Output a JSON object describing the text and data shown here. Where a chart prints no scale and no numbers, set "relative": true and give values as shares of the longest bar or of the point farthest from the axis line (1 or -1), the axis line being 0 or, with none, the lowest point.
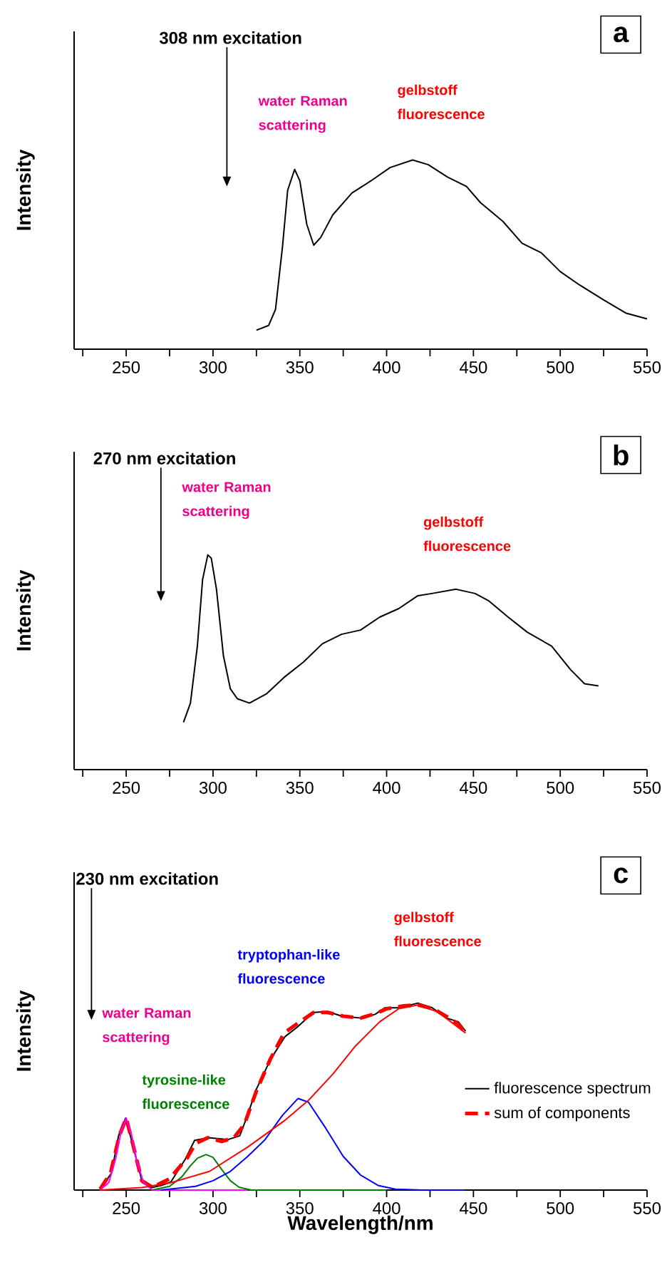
{
  "chart_data": [
    {
      "type": "line",
      "title": "a",
      "ylabel": "Intensity",
      "relative": true,
      "xlim": [
        220,
        550
      ],
      "xticks": [
        {
          "value": 225,
          "label": null
        },
        250,
        {
          "value": 275,
          "label": null
        },
        300,
        {
          "value": 325,
          "label": null
        },
        350,
        {
          "value": 375,
          "label": null
        },
        400,
        {
          "value": 425,
          "label": null
        },
        450,
        {
          "value": 475,
          "label": null
        },
        500,
        {
          "value": 525,
          "label": null
        },
        550
      ],
      "series": [
        {
          "color": "#000000",
          "x": [
            325,
            332,
            336,
            340,
            343,
            347,
            350,
            354,
            358,
            362,
            369,
            380,
            391,
            402,
            415,
            424,
            435,
            446,
            454,
            467,
            478,
            489,
            500,
            511,
            525,
            538,
            550
          ],
          "values": [
            0.1,
            0.125,
            0.21,
            0.54,
            0.84,
            0.95,
            0.89,
            0.66,
            0.55,
            0.59,
            0.71,
            0.825,
            0.89,
            0.96,
            1.0,
            0.975,
            0.91,
            0.86,
            0.775,
            0.675,
            0.56,
            0.51,
            0.41,
            0.34,
            0.26,
            0.19,
            0.16
          ]
        }
      ],
      "ref_lines": [
        {
          "axis": "x",
          "value": 308,
          "label": "308 nm excitation",
          "color": "#000000"
        }
      ],
      "annotations": [
        "water Raman scattering",
        "gelbstoff fluorescence"
      ]
    },
    {
      "type": "line",
      "title": "b",
      "ylabel": "Intensity",
      "relative": true,
      "xlim": [
        220,
        550
      ],
      "xticks": [
        {
          "value": 225,
          "label": null
        },
        250,
        {
          "value": 275,
          "label": null
        },
        300,
        {
          "value": 325,
          "label": null
        },
        350,
        {
          "value": 375,
          "label": null
        },
        400,
        {
          "value": 425,
          "label": null
        },
        450,
        {
          "value": 475,
          "label": null
        },
        500,
        {
          "value": 525,
          "label": null
        },
        550
      ],
      "series": [
        {
          "color": "#000000",
          "x": [
            283,
            287,
            291,
            294,
            297,
            299,
            302,
            306,
            310,
            314,
            321,
            331,
            341,
            352,
            363,
            374,
            385,
            396,
            407,
            418,
            426,
            440,
            451,
            459,
            470,
            481,
            495,
            506,
            514,
            522
          ],
          "values": [
            0.22,
            0.31,
            0.575,
            0.885,
            1.0,
            0.985,
            0.84,
            0.53,
            0.376,
            0.33,
            0.31,
            0.354,
            0.43,
            0.5,
            0.586,
            0.63,
            0.65,
            0.71,
            0.75,
            0.81,
            0.82,
            0.84,
            0.82,
            0.785,
            0.71,
            0.64,
            0.575,
            0.465,
            0.4,
            0.39
          ]
        }
      ],
      "ref_lines": [
        {
          "axis": "x",
          "value": 270,
          "label": "270 nm excitation",
          "color": "#000000"
        }
      ],
      "annotations": [
        "water Raman scattering",
        "gelbstoff fluorescence"
      ]
    },
    {
      "type": "line",
      "title": "c",
      "xlabel": "Wavelength/nm",
      "ylabel": "Intensity",
      "relative": true,
      "xlim": [
        220,
        550
      ],
      "legend": "right",
      "xticks": [
        {
          "value": 225,
          "label": null
        },
        250,
        {
          "value": 275,
          "label": null
        },
        300,
        {
          "value": 325,
          "label": null
        },
        350,
        {
          "value": 375,
          "label": null
        },
        400,
        {
          "value": 425,
          "label": null
        },
        450,
        {
          "value": 475,
          "label": null
        },
        500,
        {
          "value": 525,
          "label": null
        },
        550
      ],
      "series": [
        {
          "name": "fluorescence spectrum",
          "color": "#000000",
          "line_style": "solid",
          "x": [
            235,
            241.5,
            245.6,
            249.7,
            253.8,
            259.3,
            264.8,
            270.3,
            275.7,
            284,
            289.4,
            297.6,
            308.6,
            315.4,
            319.5,
            325,
            333.2,
            341.4,
            348.3,
            357.9,
            366,
            374.3,
            385.2,
            393.4,
            398.9,
            407.1,
            418,
            426.3,
            434.5,
            441.3,
            445.5
          ],
          "values": [
            0.005,
            0.09,
            0.29,
            0.385,
            0.24,
            0.04,
            0.013,
            0.025,
            0.043,
            0.165,
            0.266,
            0.28,
            0.27,
            0.29,
            0.39,
            0.54,
            0.7,
            0.82,
            0.87,
            0.95,
            0.955,
            0.93,
            0.92,
            0.94,
            0.975,
            0.975,
            1.0,
            0.975,
            0.92,
            0.9,
            0.85
          ]
        },
        {
          "name": "sum of components",
          "color": "#ff0000",
          "line_style": "dashed",
          "x": [
            235,
            241,
            246,
            250,
            254,
            259,
            265,
            275,
            285,
            290,
            297,
            305,
            312,
            318,
            325,
            333,
            341,
            350,
            358,
            366,
            375,
            385,
            394,
            400,
            410,
            418,
            427,
            435,
            441,
            445.5
          ],
          "values": [
            0.005,
            0.09,
            0.29,
            0.385,
            0.24,
            0.05,
            0.015,
            0.06,
            0.17,
            0.25,
            0.28,
            0.26,
            0.28,
            0.35,
            0.53,
            0.7,
            0.84,
            0.9,
            0.95,
            0.95,
            0.93,
            0.92,
            0.945,
            0.97,
            0.985,
            0.99,
            0.97,
            0.925,
            0.89,
            0.84
          ]
        },
        {
          "color": "#ff00ff",
          "line_style": "solid",
          "x": [
            235,
            240,
            244,
            247,
            250,
            253,
            256,
            260,
            265,
            320
          ],
          "values": [
            0,
            0.04,
            0.17,
            0.31,
            0.385,
            0.3,
            0.16,
            0.04,
            0,
            0
          ]
        },
        {
          "color": "#008000",
          "line_style": "solid",
          "x": [
            265,
            275,
            282,
            287,
            291,
            296,
            300,
            305,
            310,
            315,
            322,
            400
          ],
          "values": [
            0,
            0.02,
            0.07,
            0.13,
            0.17,
            0.19,
            0.175,
            0.11,
            0.05,
            0.015,
            0,
            0
          ]
        },
        {
          "color": "#0000ff",
          "line_style": "solid",
          "x": [
            270,
            290,
            300,
            310,
            320,
            330,
            340,
            349,
            355,
            365,
            375,
            385,
            395,
            405,
            420,
            445
          ],
          "values": [
            0,
            0.02,
            0.05,
            0.1,
            0.18,
            0.27,
            0.4,
            0.49,
            0.47,
            0.33,
            0.18,
            0.08,
            0.025,
            0.005,
            0,
            0
          ]
        },
        {
          "color": "#ff0000",
          "line_style": "solid",
          "x": [
            235,
            259,
            276,
            298,
            320,
            341,
            355,
            369,
            382,
            396,
            407,
            418,
            429,
            437,
            445.5
          ],
          "values": [
            0,
            0.013,
            0.04,
            0.1,
            0.23,
            0.37,
            0.48,
            0.62,
            0.77,
            0.9,
            0.97,
            0.99,
            0.955,
            0.9,
            0.84
          ]
        }
      ],
      "ref_lines": [
        {
          "axis": "x",
          "value": 230,
          "label": "230 nm excitation",
          "color": "#000000"
        }
      ],
      "annotations": [
        "water Raman scattering",
        "tyrosine-like fluorescence",
        "tryptophan-like fluorescence",
        "gelbstoff fluorescence"
      ]
    }
  ]
}
